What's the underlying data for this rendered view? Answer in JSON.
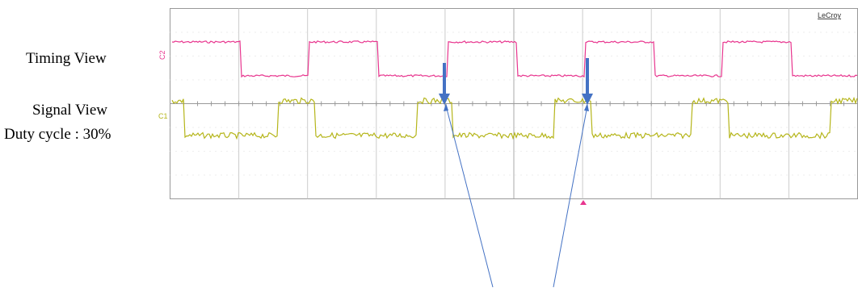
{
  "labels": {
    "timing_view": "Timing View",
    "signal_view": "Signal View",
    "duty_cycle": "Duty cycle : 30%"
  },
  "scope": {
    "brand": "LeCroy",
    "channel_2": "C2",
    "channel_1": "C1"
  }
}
